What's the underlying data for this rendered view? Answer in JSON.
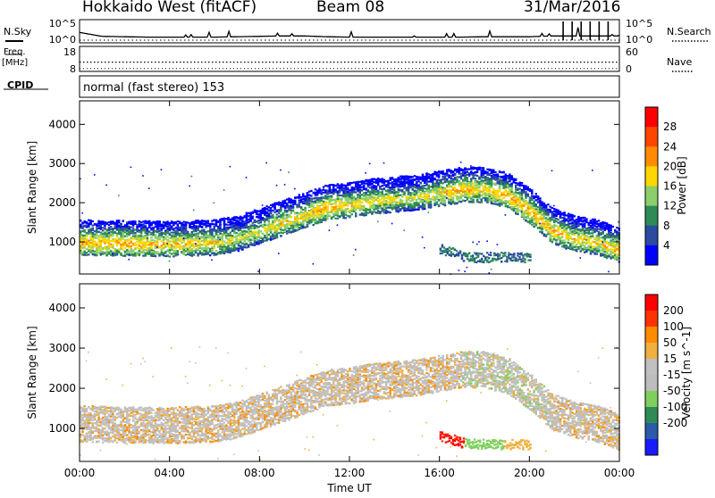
{
  "header": {
    "title": "Hokkaido West (fitACF)",
    "beam": "Beam 08",
    "date": "31/Mar/2016"
  },
  "labels": {
    "nsky": "N.Sky",
    "nsearch": "N.Search",
    "freq_line1": "Freq.",
    "freq_line2": "[MHz]",
    "nave": "Nave",
    "cpid": "CPID",
    "mode": "normal (fast stereo) 153"
  },
  "colors": {
    "power_scale": [
      "#0000ff",
      "#2c4aa0",
      "#2e8b57",
      "#8ccf6a",
      "#ffd700",
      "#ff8c00",
      "#ff4500",
      "#ff0000"
    ],
    "velocity_scale": [
      "#1a1aff",
      "#2a5aa8",
      "#2e8b57",
      "#7fcf5f",
      "#bdbdbd",
      "#c0c0c0",
      "#f0b040",
      "#ff8c00",
      "#ff3300",
      "#ff0000"
    ]
  },
  "chart_data": [
    {
      "type": "line",
      "panel": "noise",
      "x_hours": [
        0,
        1,
        2,
        3,
        4,
        5,
        6,
        7,
        8,
        9,
        10,
        11,
        12,
        13,
        14,
        15,
        16,
        17,
        18,
        19,
        20,
        21,
        22,
        23,
        24
      ],
      "series": [
        {
          "name": "N.Sky",
          "values": [
            2.2,
            1.2,
            1.1,
            1.0,
            1.0,
            1.0,
            1.0,
            1.1,
            1.2,
            1.3,
            1.3,
            1.1,
            1.0,
            1.0,
            1.0,
            1.0,
            1.0,
            1.0,
            1.1,
            1.1,
            1.1,
            1.3,
            1.3,
            1.3,
            1.3
          ]
        }
      ],
      "yticks_left": [
        "10^5",
        "10^0"
      ],
      "yticks_right": [
        "10^5",
        "10^0"
      ],
      "spikes_hours": [
        21.5,
        21.9,
        22.3,
        22.7,
        23.1,
        23.5
      ]
    },
    {
      "type": "line",
      "panel": "frequency",
      "yticks_left": [
        "18",
        "8"
      ],
      "yticks_right": [
        "60",
        "0"
      ],
      "freq_mhz": 11.5,
      "nave": 18
    },
    {
      "type": "heatmap",
      "panel": "power",
      "xlabel": "",
      "ylabel": "Slant Range [km]",
      "xticks": [
        "00:00",
        "04:00",
        "08:00",
        "12:00",
        "16:00",
        "20:00",
        "00:00"
      ],
      "xlim_hours": [
        0,
        24
      ],
      "ylim_km": [
        180,
        4600
      ],
      "yticks": [
        1000,
        2000,
        3000,
        4000
      ],
      "colorbar_label": "Power [dB]",
      "colorbar_ticks": [
        4,
        8,
        12,
        16,
        20,
        24,
        28
      ],
      "colorbar_range": [
        0,
        32
      ],
      "band_hours": [
        0,
        2,
        4,
        6,
        7,
        8,
        9,
        10,
        11,
        12,
        13,
        14,
        15,
        16,
        17,
        18,
        19,
        20,
        21,
        22,
        23,
        24
      ],
      "band_center_km": [
        1000,
        980,
        960,
        1000,
        1100,
        1300,
        1500,
        1700,
        1900,
        1950,
        2050,
        2100,
        2150,
        2250,
        2350,
        2350,
        2200,
        1800,
        1300,
        1100,
        1000,
        800
      ],
      "band_peak_db": [
        24,
        24,
        23,
        22,
        20,
        20,
        22,
        22,
        24,
        22,
        22,
        20,
        20,
        22,
        24,
        22,
        24,
        24,
        24,
        22,
        22,
        24
      ]
    },
    {
      "type": "heatmap",
      "panel": "velocity",
      "xlabel": "Time UT",
      "ylabel": "Slant Range [km]",
      "xticks": [
        "00:00",
        "04:00",
        "08:00",
        "12:00",
        "16:00",
        "20:00",
        "00:00"
      ],
      "xlim_hours": [
        0,
        24
      ],
      "ylim_km": [
        180,
        4600
      ],
      "yticks": [
        1000,
        2000,
        3000,
        4000
      ],
      "colorbar_label": "Velocity [m s^-1]",
      "colorbar_ticks": [
        200,
        100,
        50,
        15,
        -15,
        -50,
        -100,
        -200
      ],
      "colorbar_range": [
        -250,
        250
      ]
    }
  ]
}
